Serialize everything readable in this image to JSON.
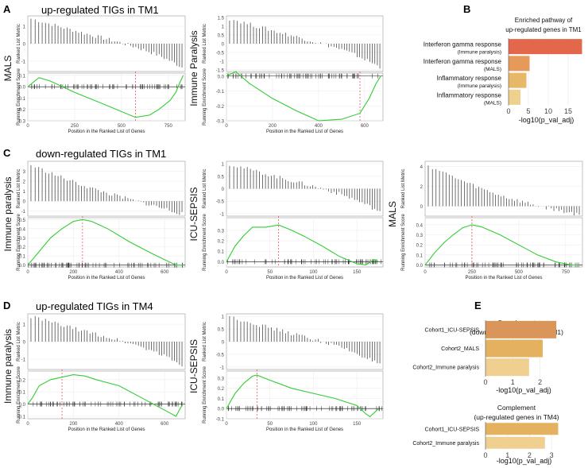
{
  "panel_letters": [
    "A",
    "B",
    "C",
    "D",
    "E"
  ],
  "section_titles": {
    "A": "up-regulated TIGs in TM1",
    "C": "down-regulated TIGs in TM1",
    "D": "up-regulated TIGs in TM4"
  },
  "gsea_labels": {
    "top_ylabel": "Ranked List Metric",
    "bottom_ylabel": "Running Enrichment Score",
    "xlabel": "Position in the Ranked List of Genes"
  },
  "chart_data": [
    {
      "id": "A1",
      "type": "line",
      "cohort_label": "MALS",
      "x": [
        0,
        60,
        120,
        250,
        400,
        575,
        650,
        700,
        760,
        790,
        810,
        830
      ],
      "y": [
        0.0,
        0.08,
        0.05,
        -0.05,
        -0.15,
        -0.27,
        -0.25,
        -0.2,
        -0.12,
        -0.05,
        0.03,
        0.1
      ],
      "xlim": [
        0,
        840
      ],
      "xticks": [
        0,
        250,
        500,
        750
      ],
      "ylim": [
        -0.3,
        0.1
      ],
      "yticks": [
        0.1,
        0.0,
        -0.1,
        -0.2,
        -0.3
      ],
      "peak_x": 575,
      "metric_ylim": [
        -1.6,
        1.6
      ],
      "metric_yticks": [
        1,
        0,
        -1
      ]
    },
    {
      "id": "A2",
      "type": "line",
      "cohort_label": "Immune Paralysis",
      "x": [
        0,
        40,
        100,
        200,
        300,
        400,
        500,
        580,
        620,
        650,
        670
      ],
      "y": [
        0.0,
        0.03,
        -0.05,
        -0.15,
        -0.23,
        -0.3,
        -0.29,
        -0.25,
        -0.15,
        -0.05,
        0.0
      ],
      "xlim": [
        0,
        680
      ],
      "xticks": [
        0,
        200,
        400,
        600
      ],
      "ylim": [
        -0.3,
        0.0
      ],
      "yticks": [
        0.0,
        -0.1,
        -0.2,
        -0.3
      ],
      "peak_x": 580,
      "metric_ylim": [
        -1.6,
        1.6
      ],
      "metric_yticks": [
        1.5,
        1.0,
        0.5,
        0.0,
        -0.5,
        -1.0,
        -1.5
      ]
    },
    {
      "id": "B",
      "type": "bar",
      "orientation": "horizontal",
      "title": "Enriched pathway of up-regulated genes in TM1",
      "categories": [
        [
          "Interferon gamma response",
          "(Immune paralysis)"
        ],
        [
          "Interferon gamma response",
          "(MALS)"
        ],
        [
          "Inflammatory response",
          "(Immune paralysis)"
        ],
        [
          "Inflammatory response",
          "(MALS)"
        ]
      ],
      "values": [
        18.5,
        5.3,
        4.5,
        3.0
      ],
      "colors": [
        "#e3674a",
        "#e69a5a",
        "#e7b868",
        "#efd08c"
      ],
      "xlabel": "-log10(p_val_adj)",
      "xlim": [
        0,
        19
      ],
      "xticks": [
        0,
        5,
        10,
        15
      ]
    },
    {
      "id": "C1",
      "type": "line",
      "cohort_label": "Immune paralysis",
      "x": [
        0,
        50,
        100,
        150,
        200,
        240,
        280,
        350,
        450,
        550,
        650,
        680
      ],
      "y": [
        0.0,
        0.15,
        0.3,
        0.4,
        0.48,
        0.5,
        0.48,
        0.4,
        0.25,
        0.12,
        0.0,
        0.0
      ],
      "xlim": [
        0,
        690
      ],
      "xticks": [
        0,
        200,
        400,
        600
      ],
      "ylim": [
        0,
        0.5
      ],
      "yticks": [
        0.0,
        0.1,
        0.2,
        0.3,
        0.4,
        0.5
      ],
      "peak_x": 240,
      "metric_ylim": [
        -1.5,
        4
      ],
      "metric_yticks": [
        3,
        2,
        1,
        0,
        -1
      ]
    },
    {
      "id": "C2",
      "type": "line",
      "cohort_label": "ICU-SEPSIS",
      "x": [
        0,
        10,
        20,
        30,
        45,
        60,
        75,
        90,
        110,
        130,
        150,
        160,
        170,
        175
      ],
      "y": [
        0.0,
        0.15,
        0.25,
        0.33,
        0.33,
        0.35,
        0.3,
        0.24,
        0.15,
        0.05,
        -0.02,
        -0.03,
        0.02,
        0.0
      ],
      "xlim": [
        0,
        180
      ],
      "xticks": [
        0,
        50,
        100,
        150
      ],
      "ylim": [
        -0.05,
        0.4
      ],
      "yticks": [
        0.3,
        0.2,
        0.1,
        0.0
      ],
      "peak_x": 60,
      "metric_ylim": [
        -1.1,
        1.1
      ],
      "metric_yticks": [
        1.0,
        0.5,
        0.0,
        -0.5,
        -1.0
      ]
    },
    {
      "id": "C3",
      "type": "line",
      "cohort_label": "MALS",
      "x": [
        0,
        50,
        100,
        150,
        200,
        250,
        300,
        400,
        500,
        600,
        700,
        780,
        820
      ],
      "y": [
        0.0,
        0.12,
        0.22,
        0.3,
        0.37,
        0.4,
        0.38,
        0.3,
        0.2,
        0.1,
        0.03,
        0.0,
        0.0
      ],
      "xlim": [
        0,
        840
      ],
      "xticks": [
        0,
        250,
        500,
        750
      ],
      "ylim": [
        0,
        0.45
      ],
      "yticks": [
        0.0,
        0.1,
        0.2,
        0.3,
        0.4
      ],
      "peak_x": 250,
      "metric_ylim": [
        -1,
        4.5
      ],
      "metric_yticks": [
        4,
        2,
        0
      ]
    },
    {
      "id": "D1",
      "type": "line",
      "cohort_label": "Immune paralysis",
      "x": [
        0,
        20,
        50,
        100,
        150,
        200,
        250,
        300,
        400,
        500,
        600,
        650,
        670,
        680
      ],
      "y": [
        0.0,
        0.05,
        0.15,
        0.2,
        0.22,
        0.24,
        0.23,
        0.2,
        0.15,
        0.05,
        -0.05,
        -0.1,
        -0.03,
        0.0
      ],
      "xlim": [
        0,
        690
      ],
      "xticks": [
        0,
        200,
        400,
        600
      ],
      "ylim": [
        -0.12,
        0.25
      ],
      "yticks": [
        0.2,
        0.1,
        0.0,
        -0.1
      ],
      "peak_x": 150,
      "metric_ylim": [
        -1.6,
        1.6
      ],
      "metric_yticks": [
        1,
        0,
        -1
      ]
    },
    {
      "id": "D2",
      "type": "line",
      "cohort_label": "ICU-SEPSIS",
      "x": [
        0,
        10,
        20,
        30,
        35,
        50,
        75,
        100,
        125,
        150,
        160,
        165,
        175
      ],
      "y": [
        0.0,
        0.15,
        0.25,
        0.32,
        0.33,
        0.28,
        0.2,
        0.15,
        0.1,
        0.03,
        -0.05,
        -0.08,
        0.0
      ],
      "xlim": [
        0,
        180
      ],
      "xticks": [
        0,
        50,
        100,
        150
      ],
      "ylim": [
        -0.1,
        0.35
      ],
      "yticks": [
        0.3,
        0.2,
        0.1,
        0.0,
        -0.1
      ],
      "peak_x": 35,
      "metric_ylim": [
        -1.1,
        1.1
      ],
      "metric_yticks": [
        1.0,
        0.5,
        0.0,
        -0.5,
        -1.0
      ]
    },
    {
      "id": "E1",
      "type": "bar",
      "orientation": "horizontal",
      "title": "Complement (down-regulated genes in TM1)",
      "categories": [
        "Cohort1_ICU-SEPSIS",
        "Cohort2_MALS",
        "Cohort2_Immune paralysis"
      ],
      "values": [
        2.6,
        2.1,
        1.6
      ],
      "colors": [
        "#d9955a",
        "#e4b25e",
        "#efd090"
      ],
      "xlabel": "-log10(p_val_adj)",
      "xlim": [
        0,
        2.8
      ],
      "xticks": [
        0,
        1,
        2
      ]
    },
    {
      "id": "E2",
      "type": "bar",
      "orientation": "horizontal",
      "title": "Complement (up-regulated genes in TM4)",
      "categories": [
        "Cohort1_ICU-SEPSIS",
        "Cohort2_Immune paralysis"
      ],
      "values": [
        3.3,
        2.7
      ],
      "colors": [
        "#e4b25e",
        "#efd090"
      ],
      "xlabel": "-log10(p_val_adj)",
      "xlim": [
        0,
        3.5
      ],
      "xticks": [
        0,
        1,
        2,
        3
      ]
    }
  ]
}
